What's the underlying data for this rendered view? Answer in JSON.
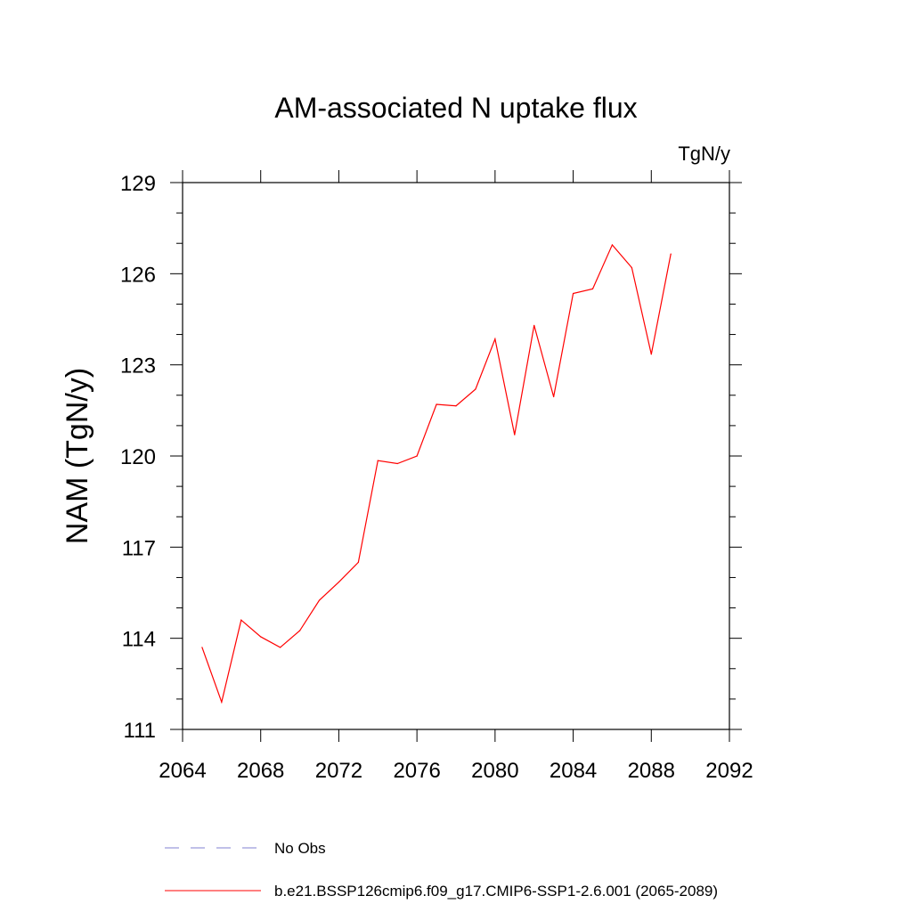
{
  "chart_data": {
    "type": "line",
    "title": "AM-associated N uptake flux",
    "units_label": "TgN/y",
    "xlabel": "",
    "ylabel": "NAM  (TgN/y)",
    "xlim": [
      2064,
      2092
    ],
    "ylim": [
      111,
      129
    ],
    "x_ticks": [
      2064,
      2068,
      2072,
      2076,
      2080,
      2084,
      2088,
      2092
    ],
    "y_ticks": [
      111,
      114,
      117,
      120,
      123,
      126,
      129
    ],
    "series": [
      {
        "name": "b.e21.BSSP126cmip6.f09_g17.CMIP6-SSP1-2.6.001 (2065-2089)",
        "color": "#ff0000",
        "x": [
          2065,
          2066,
          2067,
          2068,
          2069,
          2070,
          2071,
          2072,
          2073,
          2074,
          2075,
          2076,
          2077,
          2078,
          2079,
          2080,
          2081,
          2082,
          2083,
          2084,
          2085,
          2086,
          2087,
          2088,
          2089
        ],
        "values": [
          113.7,
          111.9,
          114.6,
          114.05,
          113.7,
          114.25,
          115.25,
          115.85,
          116.5,
          119.85,
          119.75,
          120.0,
          121.7,
          121.65,
          122.2,
          123.85,
          120.7,
          124.3,
          121.95,
          125.35,
          125.5,
          126.95,
          126.2,
          123.35,
          126.65
        ]
      }
    ],
    "legend": [
      {
        "label": "No Obs",
        "color": "#8080d0",
        "style": "dashed"
      },
      {
        "label": "b.e21.BSSP126cmip6.f09_g17.CMIP6-SSP1-2.6.001 (2065-2089)",
        "color": "#ff0000",
        "style": "solid"
      }
    ],
    "legend_position": "bottom"
  }
}
